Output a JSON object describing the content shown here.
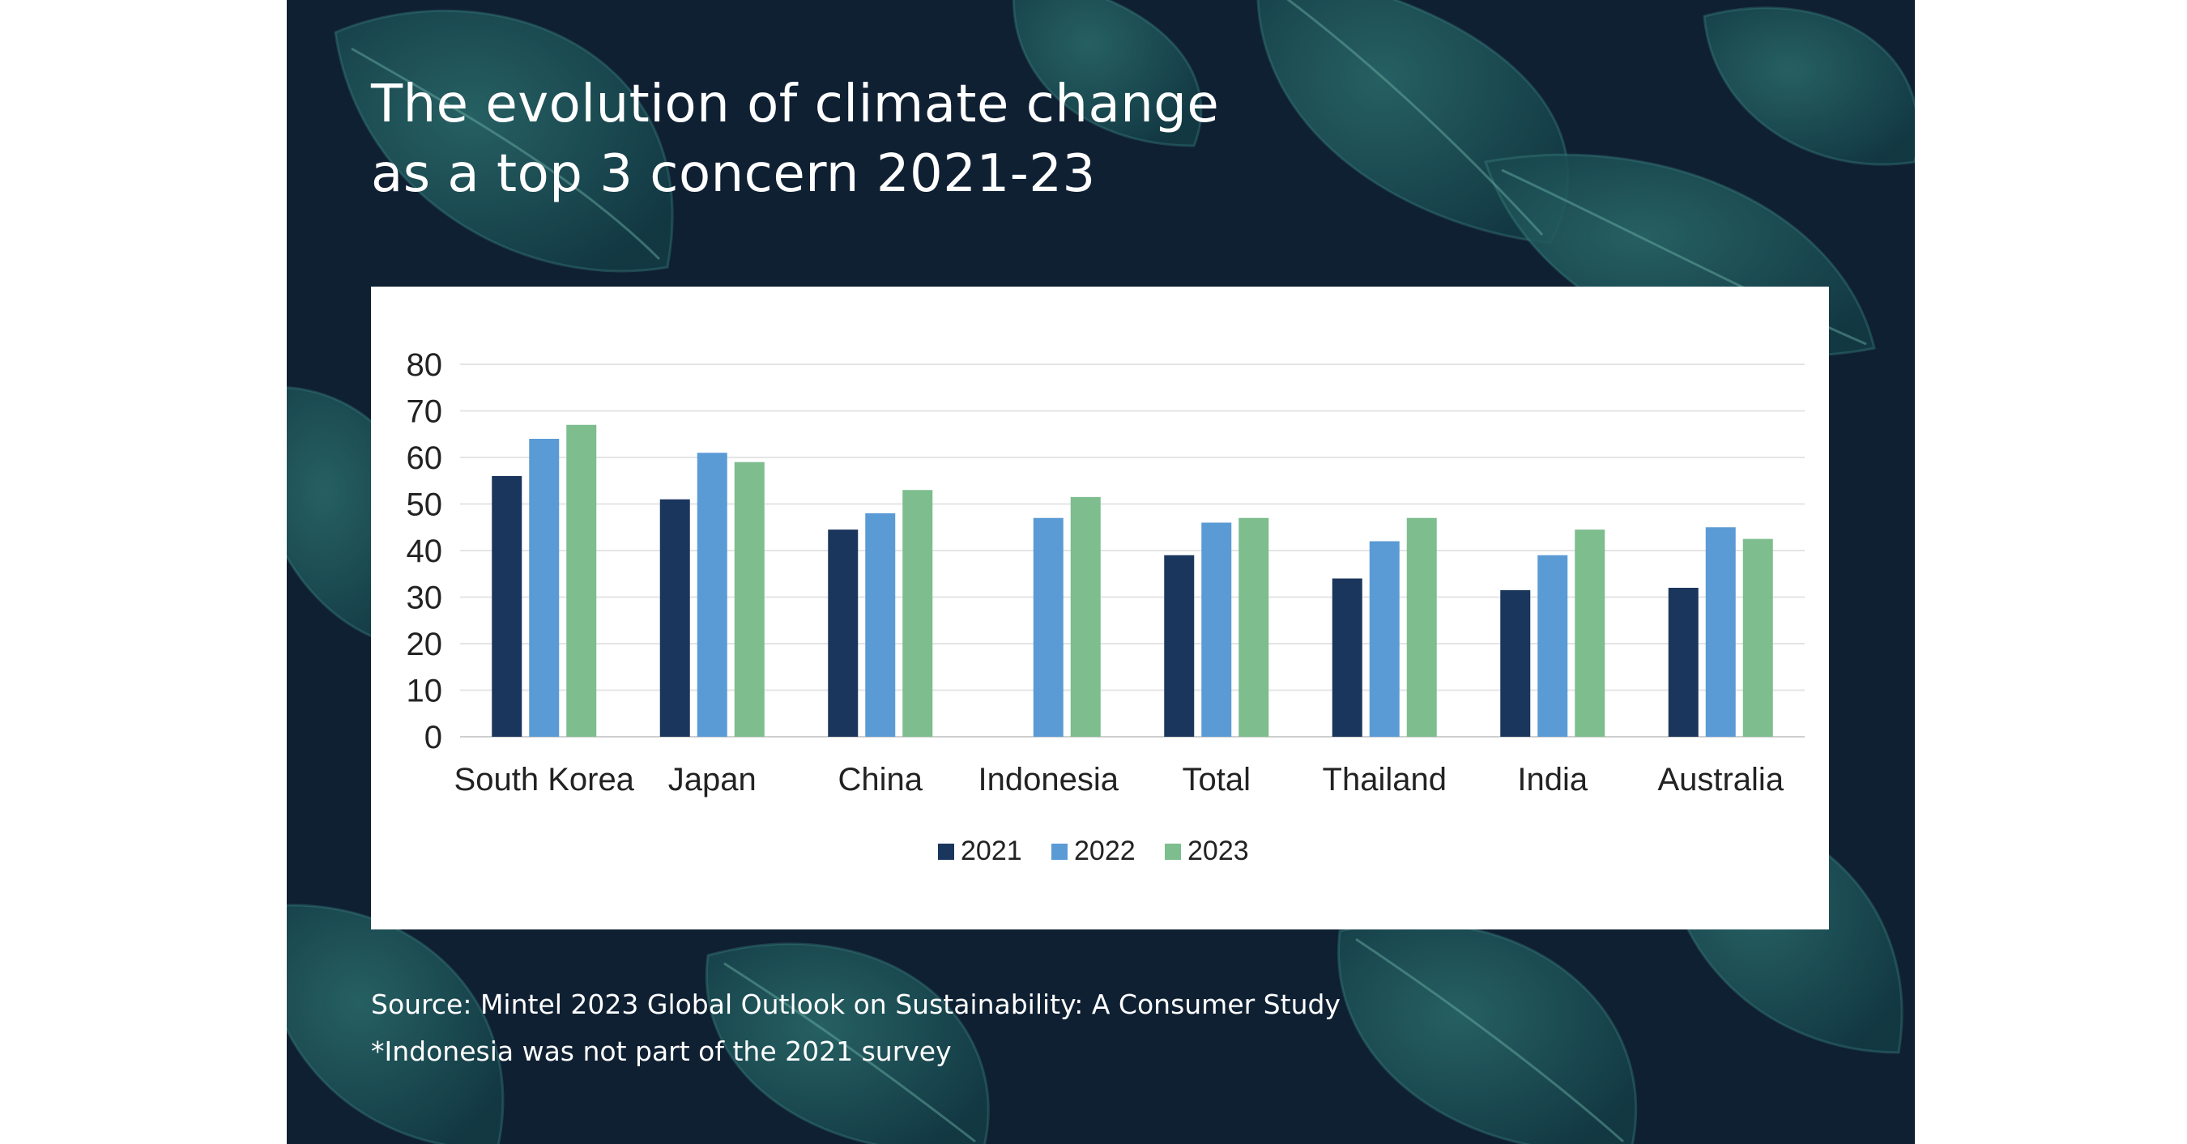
{
  "header": {
    "title_line1": "The evolution of climate change",
    "title_line2": "as a top 3 concern 2021-23"
  },
  "footer": {
    "source": "Source: Mintel 2023 Global Outlook on Sustainability: A Consumer Study",
    "note": "*Indonesia was not part of the 2021 survey"
  },
  "colors": {
    "background": "#0f2033",
    "leaf": "#1f5a5e",
    "series_2021": "#1b365d",
    "series_2022": "#5b9bd5",
    "series_2023": "#7dbd8e"
  },
  "chart_data": {
    "type": "bar",
    "title": "The evolution of climate change as a top 3 concern 2021-23",
    "xlabel": "",
    "ylabel": "",
    "ylim": [
      0,
      80
    ],
    "yticks": [
      0,
      10,
      20,
      30,
      40,
      50,
      60,
      70,
      80
    ],
    "grid": true,
    "legend": "bottom-center",
    "categories": [
      "South Korea",
      "Japan",
      "China",
      "Indonesia",
      "Total",
      "Thailand",
      "India",
      "Australia"
    ],
    "series": [
      {
        "name": "2021",
        "color": "#1b365d",
        "values": [
          56,
          51,
          44.5,
          null,
          39,
          34,
          31.5,
          32
        ]
      },
      {
        "name": "2022",
        "color": "#5b9bd5",
        "values": [
          64,
          61,
          48,
          47,
          46,
          42,
          39,
          45
        ]
      },
      {
        "name": "2023",
        "color": "#7dbd8e",
        "values": [
          67,
          59,
          53,
          51.5,
          47,
          47,
          44.5,
          42.5
        ]
      }
    ]
  }
}
